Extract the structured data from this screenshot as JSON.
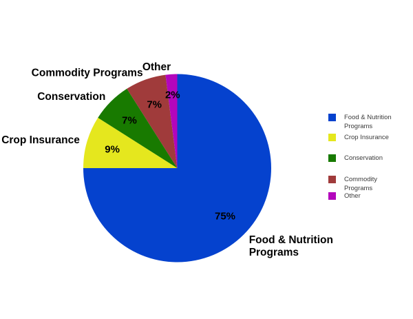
{
  "page": {
    "background_color": "#ffffff",
    "label_text_color": "#000000",
    "legend_text_color": "#3a3a3a"
  },
  "chart_data": {
    "type": "pie",
    "title": "",
    "legend_position": "right",
    "direction": "clockwise",
    "start_angle_deg": 0,
    "slices": [
      {
        "label": "Food & Nutrition Programs",
        "value": 75,
        "pct_label": "75%",
        "color": "#0542ce",
        "callout_lines": [
          "Food & Nutrition",
          "Programs"
        ],
        "legend_lines": [
          "Food & Nutrition",
          "Programs"
        ]
      },
      {
        "label": "Crop Insurance",
        "value": 9,
        "pct_label": "9%",
        "color": "#e5e71e",
        "callout_lines": [
          "Crop Insurance"
        ],
        "legend_lines": [
          "Crop Insurance"
        ]
      },
      {
        "label": "Conservation",
        "value": 7,
        "pct_label": "7%",
        "color": "#187a00",
        "callout_lines": [
          "Conservation"
        ],
        "legend_lines": [
          "Conservation"
        ]
      },
      {
        "label": "Commodity Programs",
        "value": 7,
        "pct_label": "7%",
        "color": "#a03b3b",
        "callout_lines": [
          "Commodity Programs"
        ],
        "legend_lines": [
          "Commodity",
          "Programs"
        ]
      },
      {
        "label": "Other",
        "value": 2,
        "pct_label": "2%",
        "color": "#b306bc",
        "callout_lines": [
          "Other"
        ],
        "legend_lines": [
          "Other"
        ]
      }
    ]
  }
}
